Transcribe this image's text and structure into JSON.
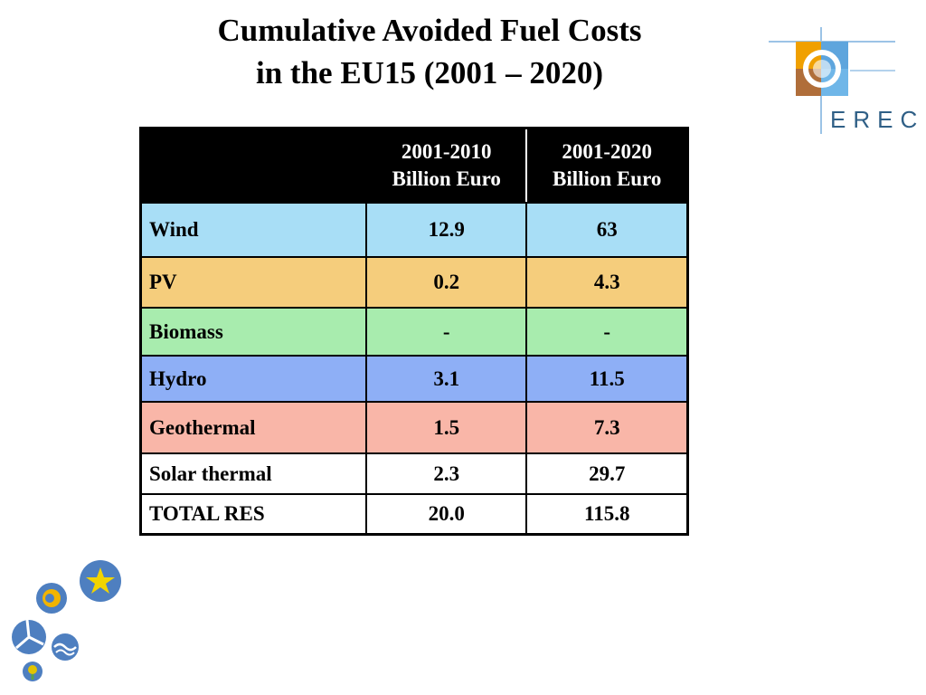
{
  "title": {
    "line1": "Cumulative Avoided Fuel Costs",
    "line2": "in the EU15 (2001 – 2020)"
  },
  "logo": {
    "text": "EREC",
    "icon": "erec-logo-icon"
  },
  "table": {
    "headers": [
      {
        "line1": "",
        "line2": ""
      },
      {
        "line1": "2001-2010",
        "line2": "Billion Euro"
      },
      {
        "line1": "2001-2020",
        "line2": "Billion Euro"
      }
    ],
    "rows": [
      {
        "name": "Wind",
        "v2010": "12.9",
        "v2020": "63",
        "color": "#a8def6"
      },
      {
        "name": "PV",
        "v2010": "0.2",
        "v2020": "4.3",
        "color": "#f5cd7c"
      },
      {
        "name": "Biomass",
        "v2010": "-",
        "v2020": "-",
        "color": "#a8ecae"
      },
      {
        "name": "Hydro",
        "v2010": "3.1",
        "v2020": "11.5",
        "color": "#8eaff6"
      },
      {
        "name": "Geothermal",
        "v2010": "1.5",
        "v2020": "7.3",
        "color": "#f9b6a8"
      },
      {
        "name": "Solar thermal",
        "v2010": "2.3",
        "v2020": "29.7",
        "color": "#ffffff"
      },
      {
        "name": "TOTAL RES",
        "v2010": "20.0",
        "v2020": "115.8",
        "color": "#ffffff"
      }
    ]
  },
  "decor_icons": [
    "sun-icon",
    "star-icon",
    "wind-turbine-icon",
    "wave-icon",
    "plant-icon"
  ]
}
